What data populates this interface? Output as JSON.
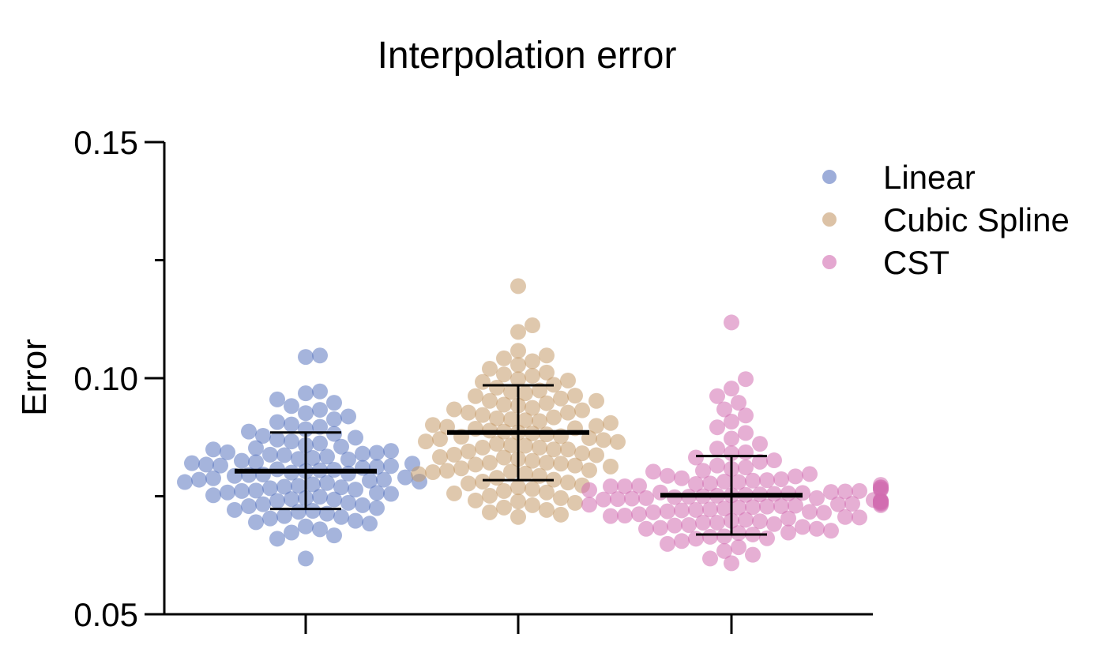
{
  "chart_data": {
    "type": "scatter",
    "title": "Interpolation error",
    "xlabel": "",
    "ylabel": "Error",
    "ylim": [
      0.05,
      0.15
    ],
    "yticks": [
      "0.05",
      "0.10",
      "0.15"
    ],
    "grid": false,
    "legend_position": "top-right",
    "series": [
      {
        "name": "Linear",
        "color": "#5b76c0",
        "mean": 0.0803,
        "sd_low": 0.0723,
        "sd_high": 0.0885,
        "values": [
          0.1045,
          0.1048,
          0.0972,
          0.0968,
          0.0955,
          0.0948,
          0.0941,
          0.0933,
          0.0926,
          0.0919,
          0.0913,
          0.0907,
          0.0902,
          0.0897,
          0.0892,
          0.0887,
          0.0882,
          0.0878,
          0.0874,
          0.087,
          0.0866,
          0.0862,
          0.0858,
          0.0855,
          0.0852,
          0.0849,
          0.0846,
          0.0843,
          0.084,
          0.0837,
          0.0834,
          0.0831,
          0.0828,
          0.0825,
          0.0822,
          0.082,
          0.0817,
          0.0815,
          0.0812,
          0.081,
          0.0807,
          0.0805,
          0.0803,
          0.08,
          0.0798,
          0.0795,
          0.0793,
          0.079,
          0.0788,
          0.0785,
          0.0783,
          0.078,
          0.0778,
          0.0775,
          0.0772,
          0.077,
          0.0767,
          0.0764,
          0.0761,
          0.0758,
          0.0755,
          0.0752,
          0.0749,
          0.0746,
          0.0743,
          0.074,
          0.0736,
          0.0733,
          0.0729,
          0.0725,
          0.0721,
          0.0717,
          0.0713,
          0.0708,
          0.0703,
          0.0698,
          0.0692,
          0.0686,
          0.068,
          0.0673,
          0.0667,
          0.066,
          0.0618,
          0.0842,
          0.0838,
          0.0829,
          0.0814,
          0.0796,
          0.0781,
          0.0769,
          0.0757,
          0.0744,
          0.0731,
          0.0719,
          0.0706,
          0.0695,
          0.0806,
          0.0819,
          0.0785,
          0.0762
        ]
      },
      {
        "name": "Cubic Spline",
        "color": "#c49a6a",
        "mean": 0.0885,
        "sd_low": 0.0784,
        "sd_high": 0.0985,
        "values": [
          0.1195,
          0.1112,
          0.1098,
          0.1058,
          0.1048,
          0.1042,
          0.1036,
          0.1028,
          0.102,
          0.1012,
          0.1005,
          0.0998,
          0.0992,
          0.0986,
          0.098,
          0.0974,
          0.0968,
          0.0962,
          0.0957,
          0.0952,
          0.0947,
          0.0942,
          0.0937,
          0.0932,
          0.0927,
          0.0922,
          0.0917,
          0.0913,
          0.0909,
          0.0905,
          0.0901,
          0.0897,
          0.0893,
          0.0889,
          0.0885,
          0.0881,
          0.0877,
          0.0873,
          0.0869,
          0.0865,
          0.0861,
          0.0857,
          0.0853,
          0.0849,
          0.0845,
          0.0841,
          0.0837,
          0.0833,
          0.0829,
          0.0825,
          0.0821,
          0.0817,
          0.0813,
          0.0809,
          0.0805,
          0.0801,
          0.0797,
          0.0793,
          0.0789,
          0.0785,
          0.0781,
          0.0777,
          0.0773,
          0.0769,
          0.0765,
          0.0761,
          0.0756,
          0.0751,
          0.0746,
          0.0741,
          0.0736,
          0.0731,
          0.0726,
          0.0721,
          0.0716,
          0.0711,
          0.0706,
          0.1008,
          0.0995,
          0.0971,
          0.0952,
          0.0934,
          0.0915,
          0.0899,
          0.0883,
          0.0866,
          0.0849,
          0.0832,
          0.0815,
          0.0798,
          0.0779,
          0.0758,
          0.0739,
          0.0911,
          0.0894,
          0.0876,
          0.0858,
          0.0838,
          0.0819,
          0.0802,
          0.0887,
          0.0871,
          0.0853,
          0.0927,
          0.0944,
          0.0963,
          0.0821,
          0.0804
        ]
      },
      {
        "name": "CST",
        "color": "#d26db0",
        "mean": 0.0752,
        "sd_low": 0.0669,
        "sd_high": 0.0835,
        "values": [
          0.1118,
          0.0998,
          0.0978,
          0.0962,
          0.0948,
          0.0934,
          0.0921,
          0.0908,
          0.0896,
          0.0884,
          0.0872,
          0.0861,
          0.0851,
          0.0841,
          0.0832,
          0.0823,
          0.0815,
          0.0808,
          0.0802,
          0.0797,
          0.0792,
          0.0788,
          0.0784,
          0.078,
          0.0777,
          0.0774,
          0.0771,
          0.0768,
          0.0765,
          0.0763,
          0.076,
          0.0758,
          0.0756,
          0.0754,
          0.0752,
          0.075,
          0.0748,
          0.0746,
          0.0744,
          0.0742,
          0.074,
          0.0738,
          0.0736,
          0.0734,
          0.0732,
          0.073,
          0.0728,
          0.0726,
          0.0724,
          0.0722,
          0.072,
          0.0718,
          0.0715,
          0.0712,
          0.0709,
          0.0706,
          0.0703,
          0.07,
          0.0697,
          0.0694,
          0.0691,
          0.0688,
          0.0685,
          0.0681,
          0.0677,
          0.0673,
          0.0669,
          0.0665,
          0.066,
          0.0655,
          0.0649,
          0.0642,
          0.0634,
          0.0626,
          0.0618,
          0.0608,
          0.0786,
          0.0772,
          0.0761,
          0.0749,
          0.0738,
          0.0727,
          0.0716,
          0.0705,
          0.0694,
          0.0683,
          0.0672,
          0.0661,
          0.0757,
          0.0745,
          0.0733,
          0.0721,
          0.0769,
          0.0781,
          0.0793,
          0.0804,
          0.0753,
          0.0741,
          0.0729,
          0.0764,
          0.0776,
          0.0751,
          0.0739,
          0.0717,
          0.0698,
          0.0681,
          0.0664,
          0.0811,
          0.0826,
          0.0843,
          0.0759,
          0.0746,
          0.0734,
          0.0771,
          0.0783,
          0.0755,
          0.0743,
          0.0731,
          0.0708,
          0.0689
        ]
      }
    ]
  }
}
